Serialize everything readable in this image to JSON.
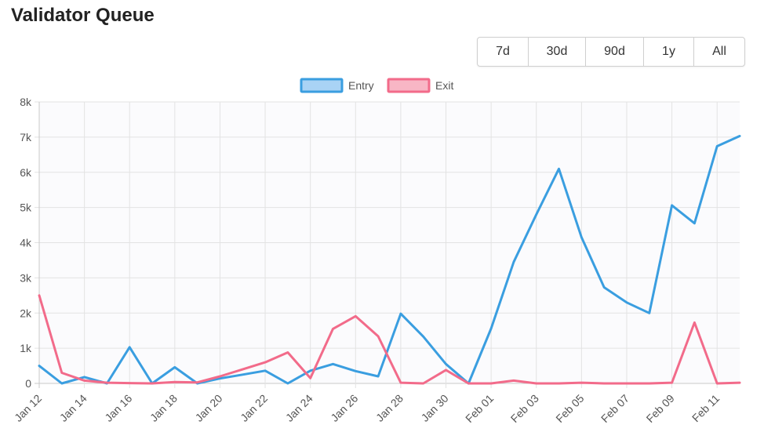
{
  "header": {
    "title": "Validator Queue"
  },
  "range_buttons": [
    "7d",
    "30d",
    "90d",
    "1y",
    "All"
  ],
  "chart_data": {
    "type": "line",
    "x": [
      "Jan 12",
      "Jan 13",
      "Jan 14",
      "Jan 15",
      "Jan 16",
      "Jan 17",
      "Jan 18",
      "Jan 19",
      "Jan 20",
      "Jan 21",
      "Jan 22",
      "Jan 23",
      "Jan 24",
      "Jan 25",
      "Jan 26",
      "Jan 27",
      "Jan 28",
      "Jan 29",
      "Jan 30",
      "Jan 31",
      "Feb 01",
      "Feb 02",
      "Feb 03",
      "Feb 04",
      "Feb 05",
      "Feb 06",
      "Feb 07",
      "Feb 08",
      "Feb 09",
      "Feb 10",
      "Feb 11",
      "Feb 12"
    ],
    "x_tick_labels": [
      "Jan 12",
      "Jan 14",
      "Jan 16",
      "Jan 18",
      "Jan 20",
      "Jan 22",
      "Jan 24",
      "Jan 26",
      "Jan 28",
      "Jan 30",
      "Feb 01",
      "Feb 03",
      "Feb 05",
      "Feb 07",
      "Feb 09",
      "Feb 11"
    ],
    "series": [
      {
        "name": "Entry",
        "color": "#3a9ee0",
        "values": [
          500,
          0,
          180,
          0,
          1030,
          0,
          460,
          0,
          140,
          250,
          360,
          0,
          360,
          550,
          350,
          200,
          1980,
          1330,
          550,
          0,
          1560,
          3450,
          4800,
          6100,
          4150,
          2730,
          2300,
          2000,
          5060,
          4550,
          6740,
          7030
        ]
      },
      {
        "name": "Exit",
        "color": "#f26b8a",
        "values": [
          2500,
          300,
          80,
          20,
          10,
          0,
          40,
          30,
          200,
          400,
          600,
          880,
          150,
          1550,
          1910,
          1340,
          20,
          0,
          380,
          0,
          0,
          80,
          0,
          0,
          20,
          0,
          0,
          0,
          20,
          1730,
          0,
          20
        ]
      }
    ],
    "y_tick_labels": [
      "0",
      "1k",
      "2k",
      "3k",
      "4k",
      "5k",
      "6k",
      "7k",
      "8k"
    ],
    "ylim": [
      0,
      8000
    ],
    "grid": true,
    "legend": "top-center"
  }
}
